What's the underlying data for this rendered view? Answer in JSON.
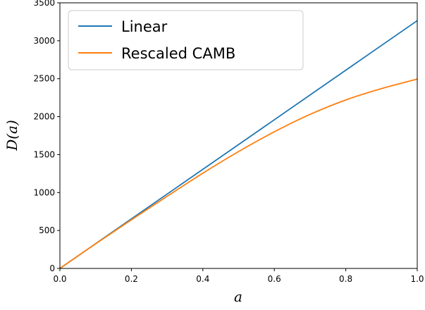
{
  "chart_data": {
    "type": "line",
    "title": "",
    "xlabel": "a",
    "ylabel": "D(a)",
    "xlim": [
      0.0,
      1.0
    ],
    "ylim": [
      0,
      3500
    ],
    "xticks": [
      "0.0",
      "0.2",
      "0.4",
      "0.6",
      "0.8",
      "1.0"
    ],
    "yticks": [
      "0",
      "500",
      "1000",
      "1500",
      "2000",
      "2500",
      "3000",
      "3500"
    ],
    "grid": false,
    "legend_position": "top-left",
    "series": [
      {
        "name": "Linear",
        "color": "#1f77b4",
        "x": [
          0.0,
          1.0
        ],
        "y": [
          0,
          3265
        ]
      },
      {
        "name": "Rescaled CAMB",
        "color": "#ff7f0e",
        "x": [
          0.0,
          0.1,
          0.2,
          0.3,
          0.4,
          0.5,
          0.6,
          0.7,
          0.8,
          0.9,
          1.0
        ],
        "y": [
          0,
          325,
          640,
          950,
          1255,
          1540,
          1800,
          2030,
          2220,
          2370,
          2495
        ]
      }
    ]
  }
}
